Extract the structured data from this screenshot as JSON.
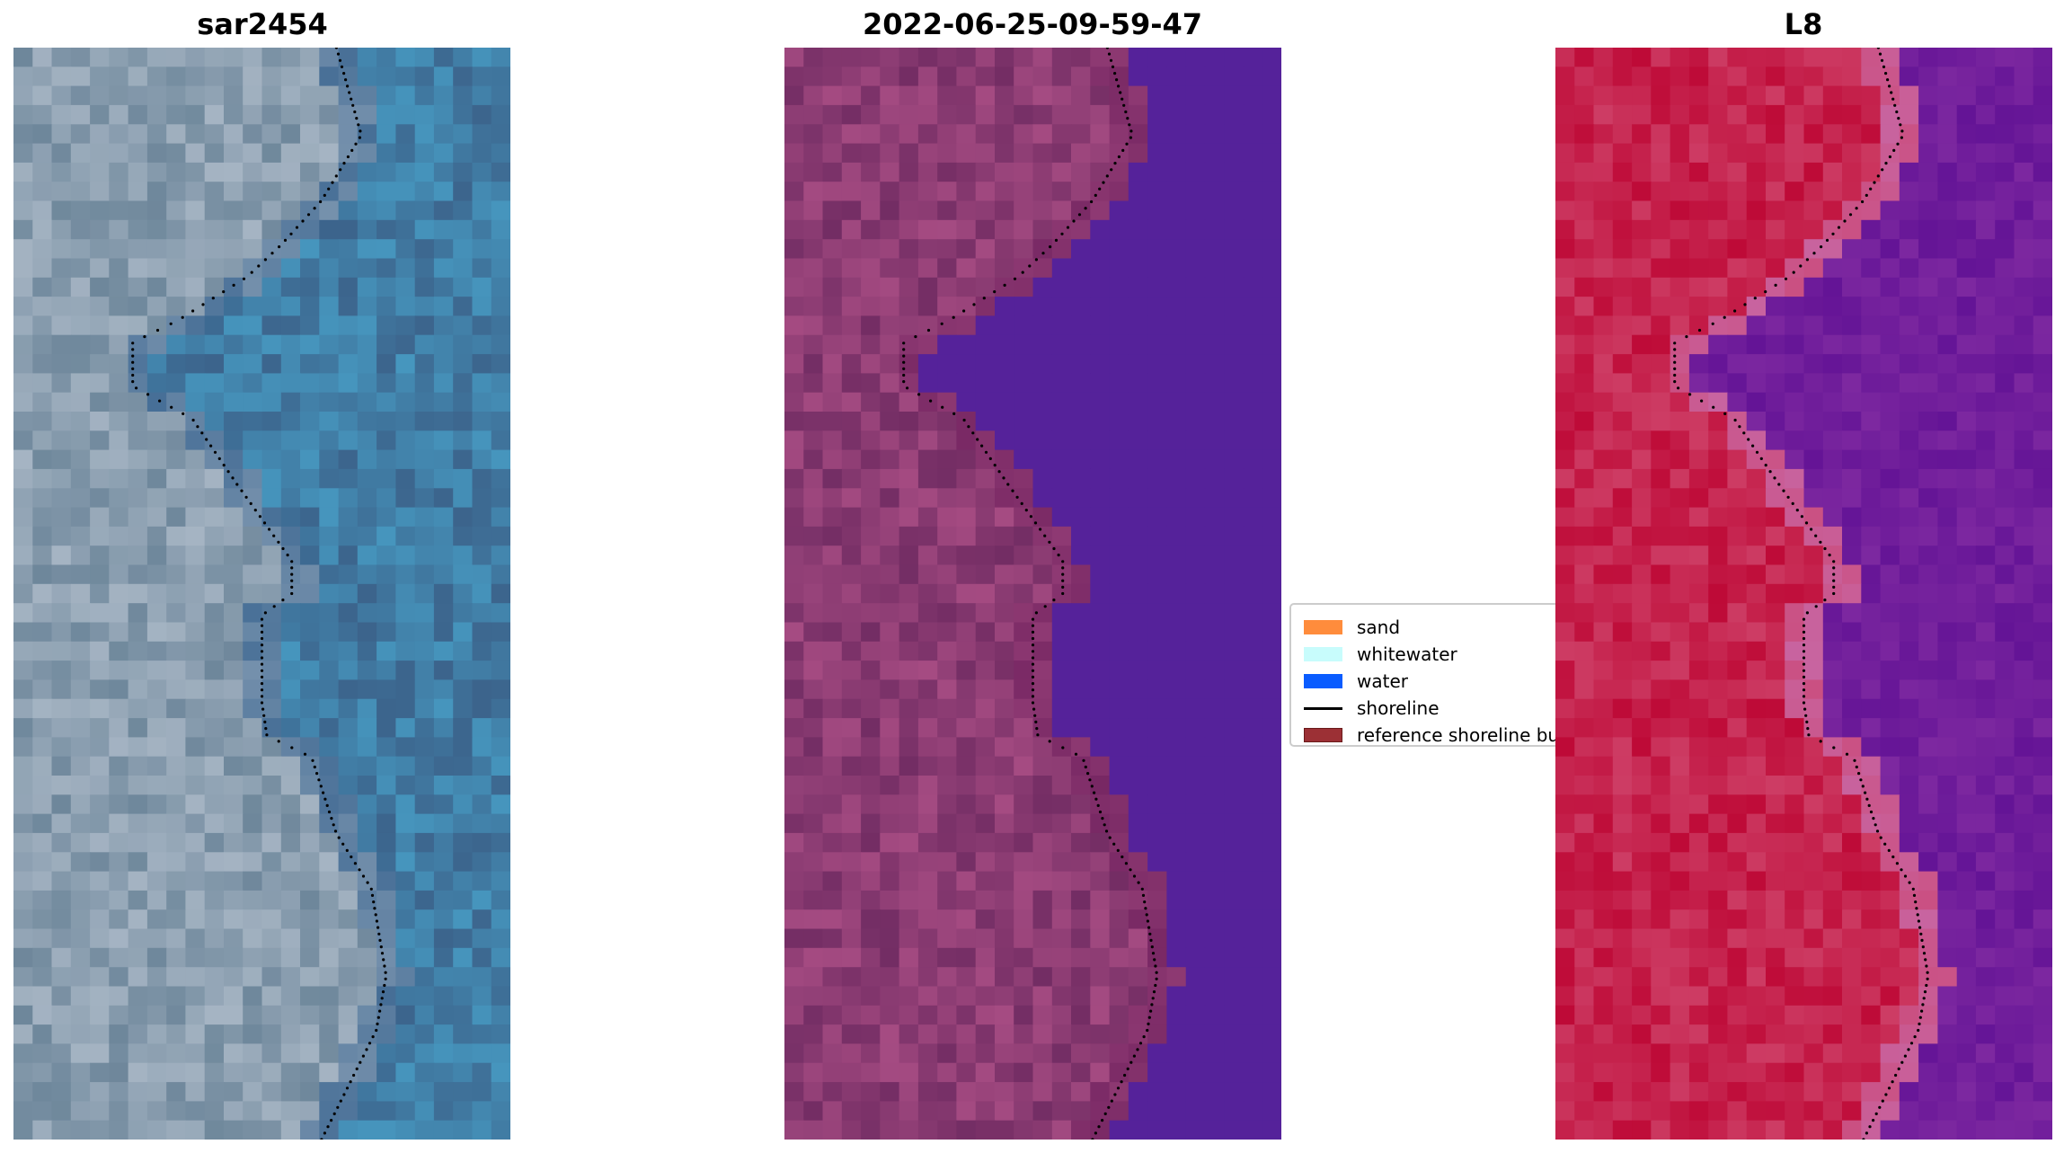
{
  "panels": [
    {
      "title": "sar2454",
      "image": "rgb-composite"
    },
    {
      "title": "2022-06-25-09-59-47",
      "image": "classified-overlay"
    },
    {
      "title": "L8",
      "image": "index-image"
    }
  ],
  "legend": {
    "placement": "center",
    "items": [
      {
        "label": "sand",
        "color": "#ff8c3c",
        "kind": "patch"
      },
      {
        "label": "whitewater",
        "color": "#c8fcfc",
        "kind": "patch"
      },
      {
        "label": "water",
        "color": "#0a5cff",
        "kind": "patch"
      },
      {
        "label": "shoreline",
        "color": "#000000",
        "kind": "line"
      },
      {
        "label": "reference shoreline bu",
        "color": "#9c3035",
        "kind": "patch"
      }
    ]
  }
}
